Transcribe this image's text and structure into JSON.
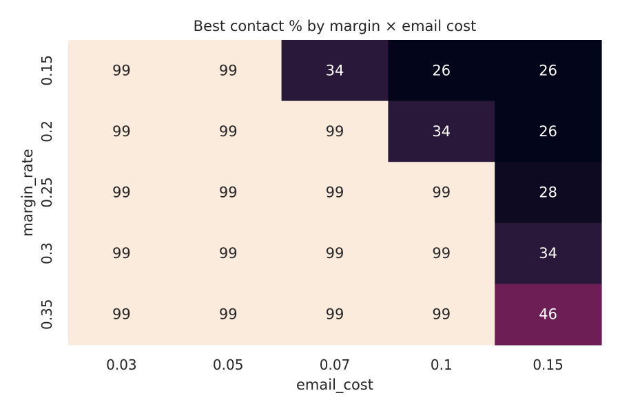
{
  "chart_data": {
    "type": "heatmap",
    "title": "Best contact % by margin × email cost",
    "xlabel": "email_cost",
    "ylabel": "margin_rate",
    "x_categories": [
      "0.03",
      "0.05",
      "0.07",
      "0.1",
      "0.15"
    ],
    "y_categories": [
      "0.15",
      "0.2",
      "0.25",
      "0.3",
      "0.35"
    ],
    "values": [
      [
        99,
        99,
        34,
        26,
        26
      ],
      [
        99,
        99,
        99,
        34,
        26
      ],
      [
        99,
        99,
        99,
        99,
        28
      ],
      [
        99,
        99,
        99,
        99,
        34
      ],
      [
        99,
        99,
        99,
        99,
        46
      ]
    ],
    "colorbar": false,
    "grid": false,
    "color_scale": [
      "#03051a",
      "#2d1a3c",
      "#6b1f55",
      "#fbebdd"
    ]
  }
}
